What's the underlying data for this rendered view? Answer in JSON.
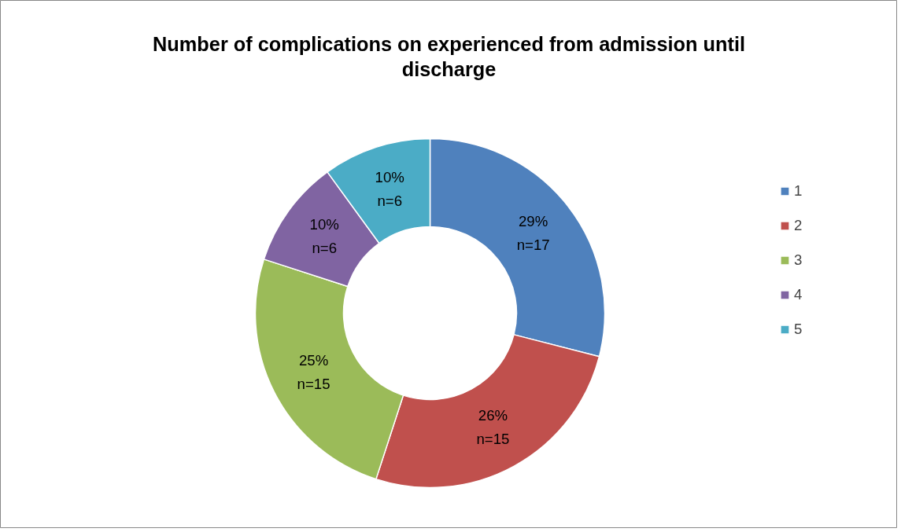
{
  "chart_data": {
    "type": "donut",
    "title": "Number of complications on experienced from admission until discharge",
    "categories": [
      "1",
      "2",
      "3",
      "4",
      "5"
    ],
    "values": [
      29,
      26,
      25,
      10,
      10
    ],
    "colors": [
      "#4f81bd",
      "#c0504d",
      "#9bbb59",
      "#8064a2",
      "#4bacc6"
    ],
    "value_labels": [
      "29%\nn=17",
      "26%\nn=15",
      "25%\nn=15",
      "10%\nn=6",
      "10%\nn=6"
    ],
    "legend": "right"
  }
}
